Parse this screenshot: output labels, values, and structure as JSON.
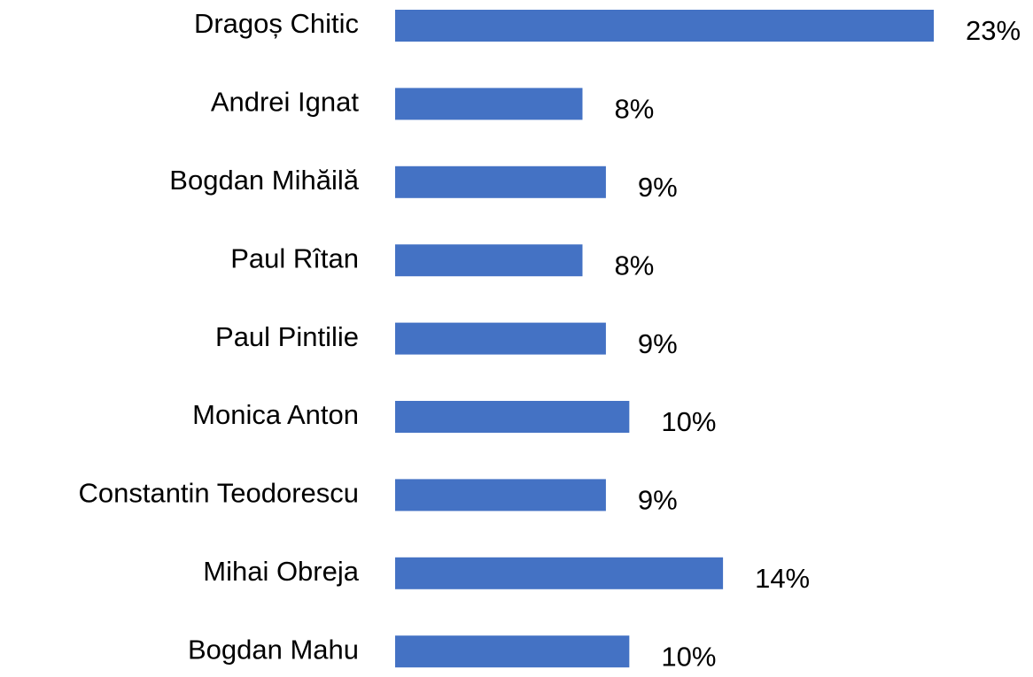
{
  "chart_data": {
    "type": "bar",
    "orientation": "horizontal",
    "categories": [
      "Dragoș Chitic",
      "Andrei Ignat",
      "Bogdan Mihăilă",
      "Paul Rîtan",
      "Paul Pintilie",
      "Monica Anton",
      "Constantin Teodorescu",
      "Mihai Obreja",
      "Bogdan Mahu"
    ],
    "values": [
      23,
      8,
      9,
      8,
      9,
      10,
      9,
      14,
      10
    ],
    "value_labels": [
      "23%",
      "8%",
      "9%",
      "8%",
      "9%",
      "10%",
      "9%",
      "14%",
      "10%"
    ],
    "color": "#4472c4"
  }
}
